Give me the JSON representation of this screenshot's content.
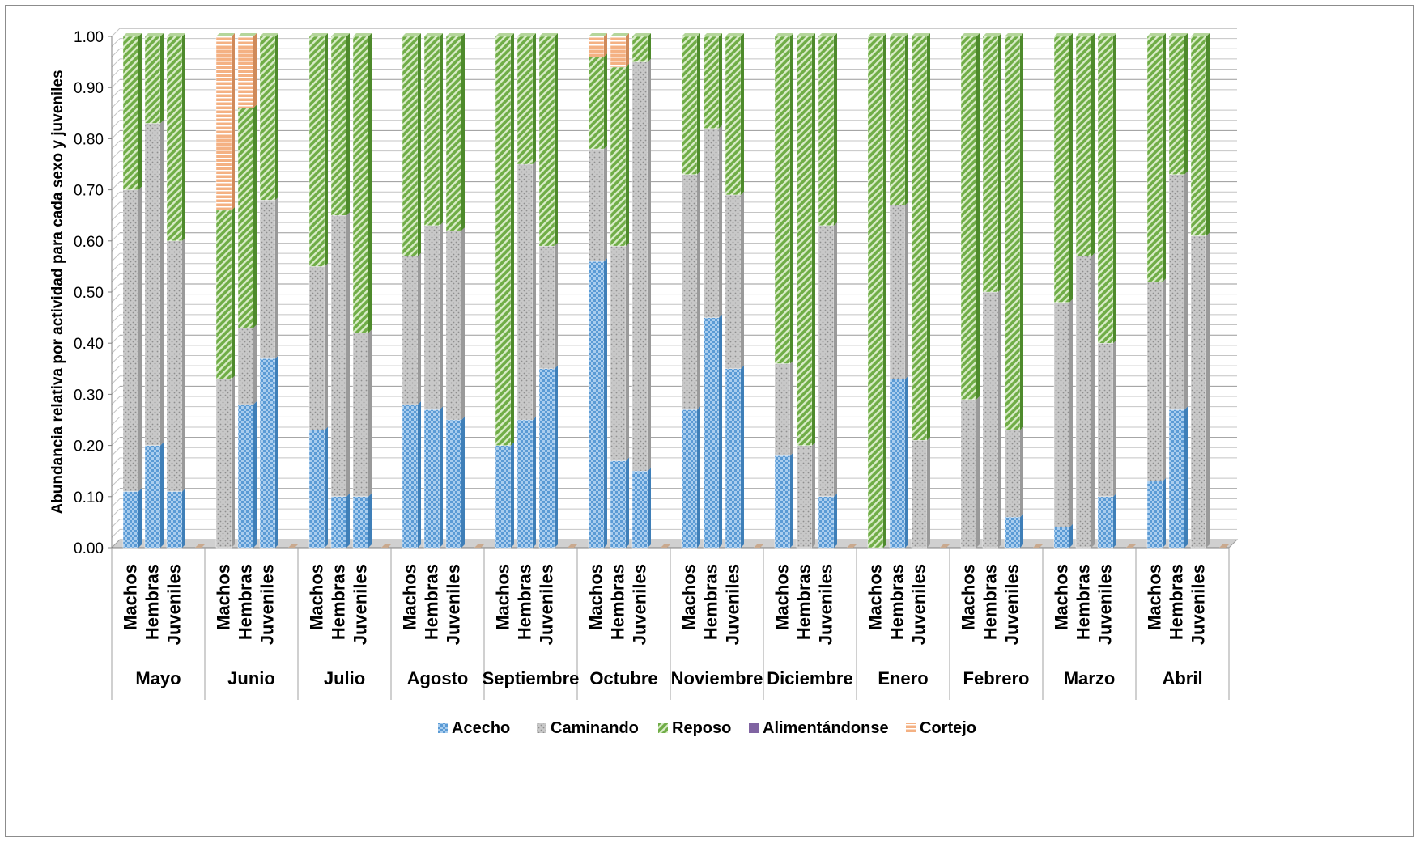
{
  "chart_data": {
    "type": "bar",
    "stacked": true,
    "title": "",
    "xlabel": "",
    "ylabel": "Abundancia relativa por actividad para cada sexo y juveniles",
    "ylim": [
      0,
      1
    ],
    "yticks": [
      "0.00",
      "0.10",
      "0.20",
      "0.30",
      "0.40",
      "0.50",
      "0.60",
      "0.70",
      "0.80",
      "0.90",
      "1.00"
    ],
    "grid": true,
    "legend_position": "bottom",
    "subgroups": [
      "Machos",
      "Hembras",
      "Juveniles"
    ],
    "groups": [
      {
        "name": "Mayo",
        "bars": [
          {
            "Acecho": 0.11,
            "Caminando": 0.59,
            "Reposo": 0.3,
            "Alimentándonse": 0,
            "Cortejo": 0
          },
          {
            "Acecho": 0.2,
            "Caminando": 0.63,
            "Reposo": 0.17,
            "Alimentándonse": 0,
            "Cortejo": 0
          },
          {
            "Acecho": 0.11,
            "Caminando": 0.49,
            "Reposo": 0.4,
            "Alimentándonse": 0,
            "Cortejo": 0
          }
        ]
      },
      {
        "name": "Junio",
        "bars": [
          {
            "Acecho": 0.0,
            "Caminando": 0.33,
            "Reposo": 0.33,
            "Alimentándonse": 0,
            "Cortejo": 0.34
          },
          {
            "Acecho": 0.28,
            "Caminando": 0.15,
            "Reposo": 0.43,
            "Alimentándonse": 0,
            "Cortejo": 0.14
          },
          {
            "Acecho": 0.37,
            "Caminando": 0.31,
            "Reposo": 0.32,
            "Alimentándonse": 0,
            "Cortejo": 0
          }
        ]
      },
      {
        "name": "Julio",
        "bars": [
          {
            "Acecho": 0.23,
            "Caminando": 0.32,
            "Reposo": 0.45,
            "Alimentándonse": 0,
            "Cortejo": 0
          },
          {
            "Acecho": 0.1,
            "Caminando": 0.55,
            "Reposo": 0.35,
            "Alimentándonse": 0,
            "Cortejo": 0
          },
          {
            "Acecho": 0.1,
            "Caminando": 0.32,
            "Reposo": 0.58,
            "Alimentándonse": 0,
            "Cortejo": 0
          }
        ]
      },
      {
        "name": "Agosto",
        "bars": [
          {
            "Acecho": 0.28,
            "Caminando": 0.29,
            "Reposo": 0.43,
            "Alimentándonse": 0,
            "Cortejo": 0
          },
          {
            "Acecho": 0.27,
            "Caminando": 0.36,
            "Reposo": 0.37,
            "Alimentándonse": 0,
            "Cortejo": 0
          },
          {
            "Acecho": 0.25,
            "Caminando": 0.37,
            "Reposo": 0.38,
            "Alimentándonse": 0,
            "Cortejo": 0
          }
        ]
      },
      {
        "name": "Septiembre",
        "bars": [
          {
            "Acecho": 0.2,
            "Caminando": 0.0,
            "Reposo": 0.8,
            "Alimentándonse": 0,
            "Cortejo": 0
          },
          {
            "Acecho": 0.25,
            "Caminando": 0.5,
            "Reposo": 0.25,
            "Alimentándonse": 0,
            "Cortejo": 0
          },
          {
            "Acecho": 0.35,
            "Caminando": 0.24,
            "Reposo": 0.41,
            "Alimentándonse": 0,
            "Cortejo": 0
          }
        ]
      },
      {
        "name": "Octubre",
        "bars": [
          {
            "Acecho": 0.56,
            "Caminando": 0.22,
            "Reposo": 0.18,
            "Alimentándonse": 0,
            "Cortejo": 0.04
          },
          {
            "Acecho": 0.17,
            "Caminando": 0.42,
            "Reposo": 0.35,
            "Alimentándonse": 0,
            "Cortejo": 0.06
          },
          {
            "Acecho": 0.15,
            "Caminando": 0.8,
            "Reposo": 0.05,
            "Alimentándonse": 0,
            "Cortejo": 0
          }
        ]
      },
      {
        "name": "Noviembre",
        "bars": [
          {
            "Acecho": 0.27,
            "Caminando": 0.46,
            "Reposo": 0.27,
            "Alimentándonse": 0,
            "Cortejo": 0
          },
          {
            "Acecho": 0.45,
            "Caminando": 0.37,
            "Reposo": 0.18,
            "Alimentándonse": 0,
            "Cortejo": 0
          },
          {
            "Acecho": 0.35,
            "Caminando": 0.34,
            "Reposo": 0.31,
            "Alimentándonse": 0,
            "Cortejo": 0
          }
        ]
      },
      {
        "name": "Diciembre",
        "bars": [
          {
            "Acecho": 0.18,
            "Caminando": 0.18,
            "Reposo": 0.64,
            "Alimentándonse": 0,
            "Cortejo": 0
          },
          {
            "Acecho": 0.0,
            "Caminando": 0.2,
            "Reposo": 0.8,
            "Alimentándonse": 0,
            "Cortejo": 0
          },
          {
            "Acecho": 0.1,
            "Caminando": 0.53,
            "Reposo": 0.37,
            "Alimentándonse": 0,
            "Cortejo": 0
          }
        ]
      },
      {
        "name": "Enero",
        "bars": [
          {
            "Acecho": 0.0,
            "Caminando": 0.0,
            "Reposo": 1.0,
            "Alimentándonse": 0,
            "Cortejo": 0
          },
          {
            "Acecho": 0.33,
            "Caminando": 0.34,
            "Reposo": 0.33,
            "Alimentándonse": 0,
            "Cortejo": 0
          },
          {
            "Acecho": 0.0,
            "Caminando": 0.21,
            "Reposo": 0.79,
            "Alimentándonse": 0,
            "Cortejo": 0
          }
        ]
      },
      {
        "name": "Febrero",
        "bars": [
          {
            "Acecho": 0.0,
            "Caminando": 0.29,
            "Reposo": 0.71,
            "Alimentándonse": 0,
            "Cortejo": 0
          },
          {
            "Acecho": 0.0,
            "Caminando": 0.5,
            "Reposo": 0.5,
            "Alimentándonse": 0,
            "Cortejo": 0
          },
          {
            "Acecho": 0.06,
            "Caminando": 0.17,
            "Reposo": 0.77,
            "Alimentándonse": 0,
            "Cortejo": 0
          }
        ]
      },
      {
        "name": "Marzo",
        "bars": [
          {
            "Acecho": 0.04,
            "Caminando": 0.44,
            "Reposo": 0.52,
            "Alimentándonse": 0,
            "Cortejo": 0
          },
          {
            "Acecho": 0.0,
            "Caminando": 0.57,
            "Reposo": 0.43,
            "Alimentándonse": 0,
            "Cortejo": 0
          },
          {
            "Acecho": 0.1,
            "Caminando": 0.3,
            "Reposo": 0.6,
            "Alimentándonse": 0,
            "Cortejo": 0
          }
        ]
      },
      {
        "name": "Abril",
        "bars": [
          {
            "Acecho": 0.13,
            "Caminando": 0.39,
            "Reposo": 0.48,
            "Alimentándonse": 0,
            "Cortejo": 0
          },
          {
            "Acecho": 0.27,
            "Caminando": 0.46,
            "Reposo": 0.27,
            "Alimentándonse": 0,
            "Cortejo": 0
          },
          {
            "Acecho": 0.0,
            "Caminando": 0.61,
            "Reposo": 0.39,
            "Alimentándonse": 0,
            "Cortejo": 0
          }
        ]
      }
    ],
    "series": [
      {
        "name": "Acecho",
        "color": "#5b9bd5",
        "pattern": "checker"
      },
      {
        "name": "Caminando",
        "color": "#bfbfbf",
        "pattern": "dots"
      },
      {
        "name": "Reposo",
        "color": "#70ad47",
        "pattern": "diagonal"
      },
      {
        "name": "Alimentándonse",
        "color": "#8064a2",
        "pattern": "solid"
      },
      {
        "name": "Cortejo",
        "color": "#f4b183",
        "pattern": "horizontal"
      }
    ]
  }
}
